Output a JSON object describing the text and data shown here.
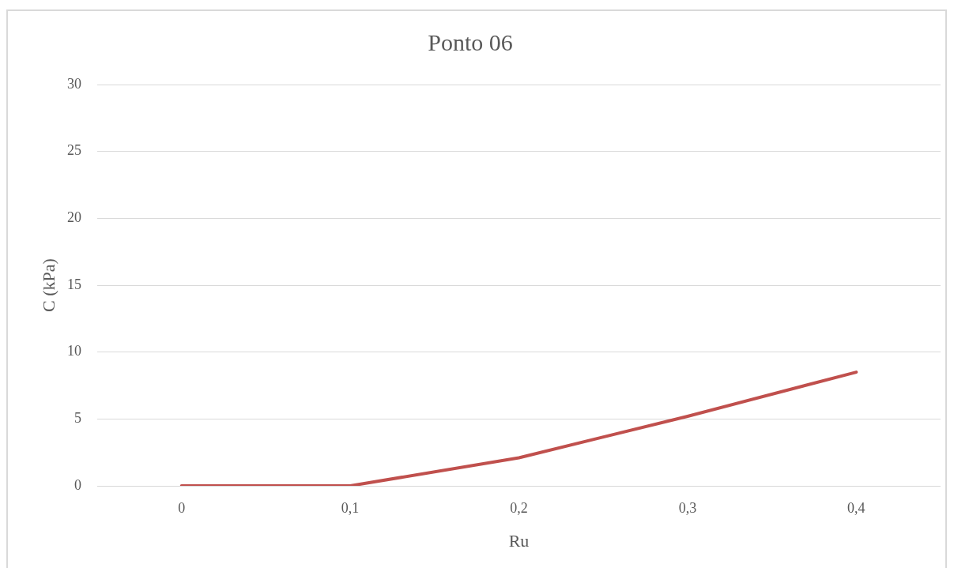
{
  "chart_data": {
    "type": "line",
    "title": "Ponto 06",
    "xlabel": "Ru",
    "ylabel": "C (kPa)",
    "categories": [
      "0",
      "0,1",
      "0,2",
      "0,3",
      "0,4"
    ],
    "series": [
      {
        "color": "#c0504d",
        "values": [
          0,
          0,
          2.1,
          5.2,
          8.5
        ]
      }
    ],
    "ylim": [
      0,
      30
    ],
    "yticks": [
      0,
      5,
      10,
      15,
      20,
      25,
      30
    ],
    "grid": "y",
    "marker": "none",
    "line_style": "solid"
  }
}
